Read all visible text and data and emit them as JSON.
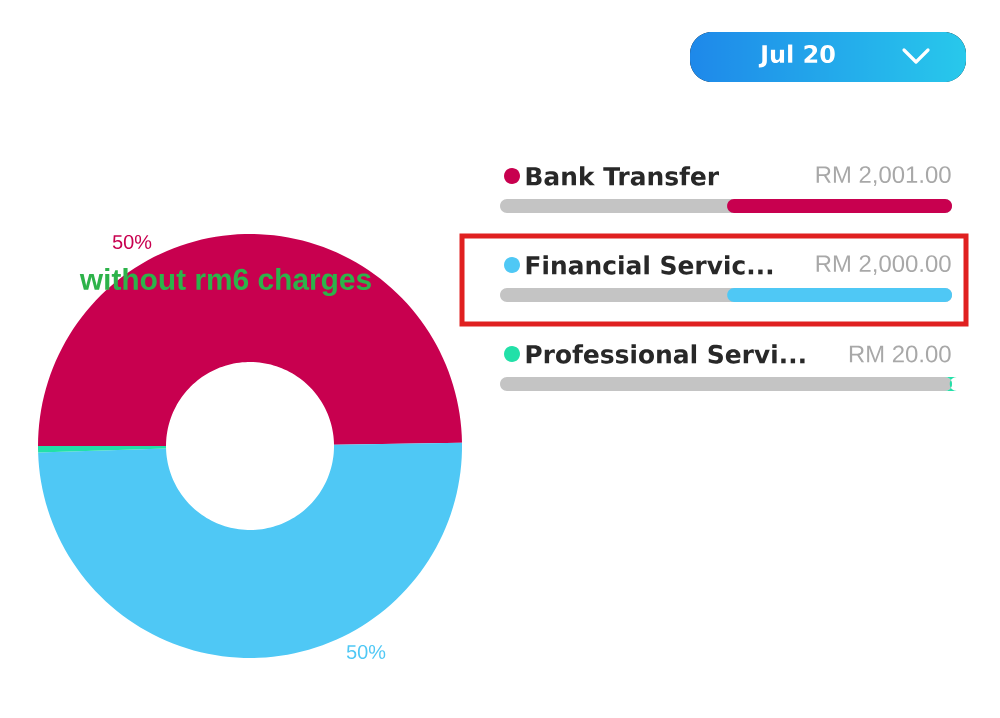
{
  "chart_data": {
    "type": "donut",
    "subtitle": "Jul 20",
    "categories": [
      "Bank Transfer",
      "Financial Servic...",
      "Professional Servi..."
    ],
    "values": [
      2001,
      2000,
      20
    ],
    "colors": [
      "#c8004f",
      "#4fc8f5",
      "#22e0a8"
    ],
    "value_labels": [
      "RM 2,001.00",
      "RM 2,000.00",
      "RM 20.00"
    ],
    "legend": "right",
    "annotations": [
      "50%",
      "50%",
      "without rm6 charges"
    ]
  }
}
